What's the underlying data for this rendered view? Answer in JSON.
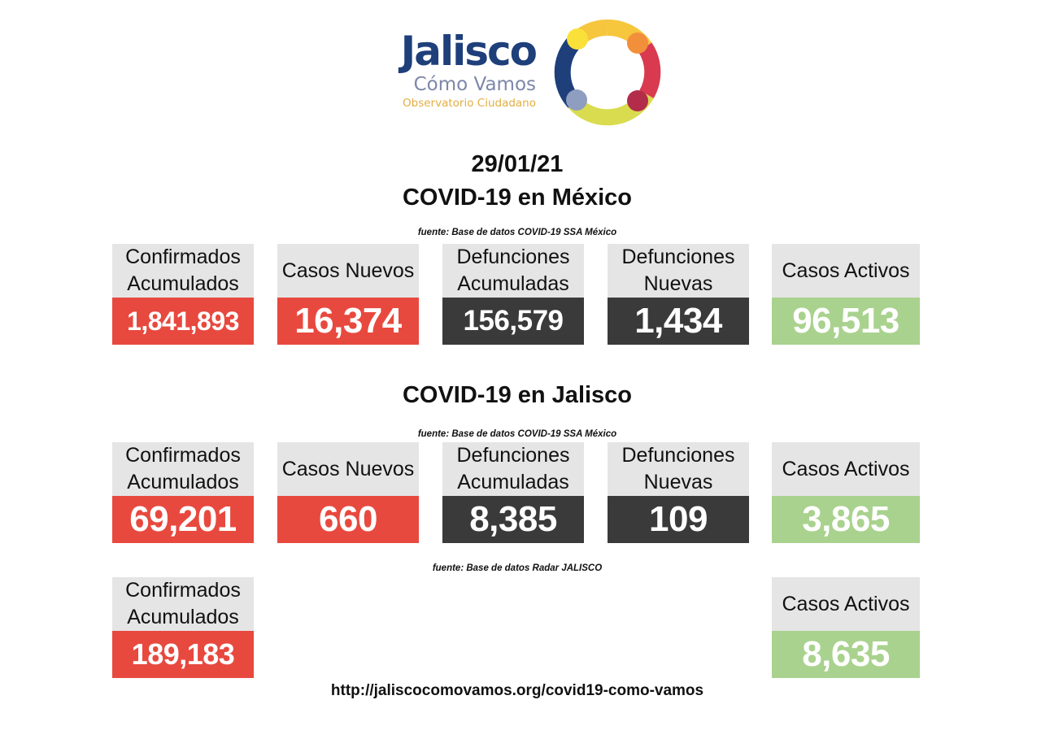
{
  "logo": {
    "title": "Jalisco",
    "subtitle": "Cómo Vamos",
    "tagline": "Observatorio Ciudadano",
    "ring_colors": [
      "#f6c63d",
      "#f28f3b",
      "#d93a4f",
      "#b32d4a",
      "#d9dc4e",
      "#8f9dc0",
      "#1e3f7a",
      "#f9e13a"
    ]
  },
  "date": "29/01/21",
  "mexico": {
    "title": "COVID-19 en México",
    "source": "fuente: Base de datos COVID-19 SSA México",
    "cards": [
      {
        "label": "Confirmados Acumulados",
        "value": "1,841,893",
        "color": "#e8493f"
      },
      {
        "label": "Casos Nuevos",
        "value": "16,374",
        "color": "#e8493f"
      },
      {
        "label": "Defunciones Acumuladas",
        "value": "156,579",
        "color": "#3a3a3a"
      },
      {
        "label": "Defunciones Nuevas",
        "value": "1,434",
        "color": "#3a3a3a"
      },
      {
        "label": "Casos Activos",
        "value": "96,513",
        "color": "#a9d28e"
      }
    ]
  },
  "jalisco": {
    "title": "COVID-19 en Jalisco",
    "source": "fuente: Base de datos COVID-19 SSA México",
    "cards": [
      {
        "label": "Confirmados Acumulados",
        "value": "69,201",
        "color": "#e8493f"
      },
      {
        "label": "Casos Nuevos",
        "value": "660",
        "color": "#e8493f"
      },
      {
        "label": "Defunciones Acumuladas",
        "value": "8,385",
        "color": "#3a3a3a"
      },
      {
        "label": "Defunciones Nuevas",
        "value": "109",
        "color": "#3a3a3a"
      },
      {
        "label": "Casos Activos",
        "value": "3,865",
        "color": "#a9d28e"
      }
    ]
  },
  "radar": {
    "source": "fuente: Base de datos Radar JALISCO",
    "cards": [
      {
        "label": "Confirmados Acumulados",
        "value": "189,183",
        "color": "#e8493f"
      },
      {
        "label": "Casos Activos",
        "value": "8,635",
        "color": "#a9d28e"
      }
    ]
  },
  "footer": {
    "url": "http://jaliscocomovamos.org/covid19-como-vamos"
  }
}
